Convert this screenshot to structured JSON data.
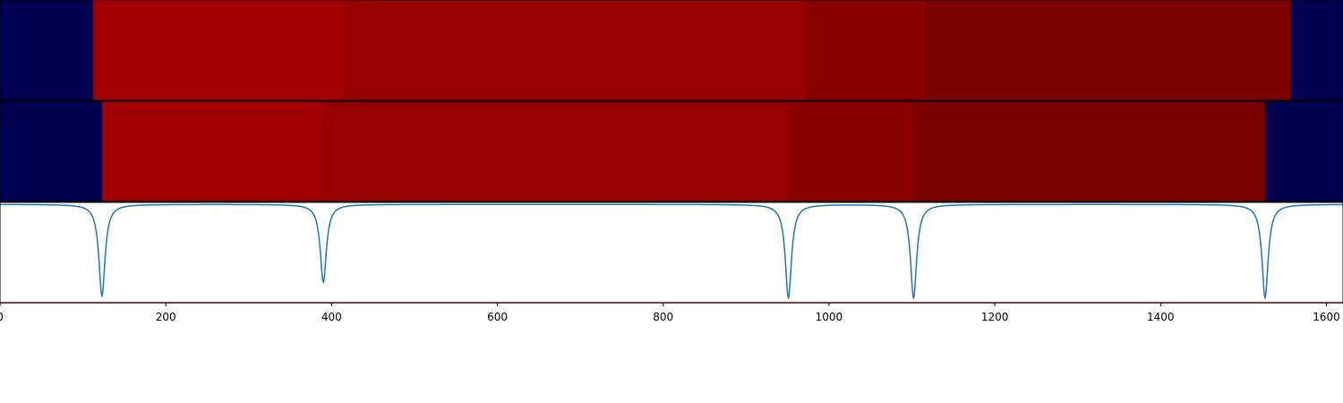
{
  "chart_data": [
    {
      "type": "heatmap",
      "panel": 1,
      "xlim": [
        0,
        1620
      ],
      "colors": {
        "background": "#000050",
        "levels": [
          "#a00000",
          "#960000",
          "#8a0000",
          "#7c0000"
        ]
      },
      "segments": [
        {
          "x0": 112,
          "x1": 416,
          "level": 0
        },
        {
          "x0": 416,
          "x1": 973,
          "level": 1
        },
        {
          "x0": 973,
          "x1": 1117,
          "level": 2
        },
        {
          "x0": 1117,
          "x1": 1557,
          "level": 3
        }
      ]
    },
    {
      "type": "heatmap",
      "panel": 2,
      "xlim": [
        0,
        1620
      ],
      "colors": {
        "background": "#000050",
        "levels": [
          "#a00000",
          "#960000",
          "#8a0000",
          "#7c0000"
        ]
      },
      "segments": [
        {
          "x0": 123,
          "x1": 390,
          "level": 0
        },
        {
          "x0": 390,
          "x1": 951,
          "level": 1
        },
        {
          "x0": 951,
          "x1": 1102,
          "level": 2
        },
        {
          "x0": 1102,
          "x1": 1526,
          "level": 3
        }
      ]
    },
    {
      "type": "line",
      "panel": 3,
      "xlim": [
        0,
        1620
      ],
      "ylim": [
        -1.0,
        0.02
      ],
      "line_color": "#1f77b4",
      "baseline_color": "#ff0000",
      "baseline_y": -1.0,
      "dips": [
        {
          "x": 123,
          "depth": -0.93
        },
        {
          "x": 390,
          "depth": -0.79
        },
        {
          "x": 951,
          "depth": -0.95
        },
        {
          "x": 1102,
          "depth": -0.95
        },
        {
          "x": 1526,
          "depth": -0.95
        }
      ],
      "x_ticks": [
        0,
        200,
        400,
        600,
        800,
        1000,
        1200,
        1400,
        1600
      ],
      "x_tick_labels": [
        "0",
        "200",
        "400",
        "600",
        "800",
        "1000",
        "1200",
        "1400",
        "1600"
      ]
    }
  ]
}
